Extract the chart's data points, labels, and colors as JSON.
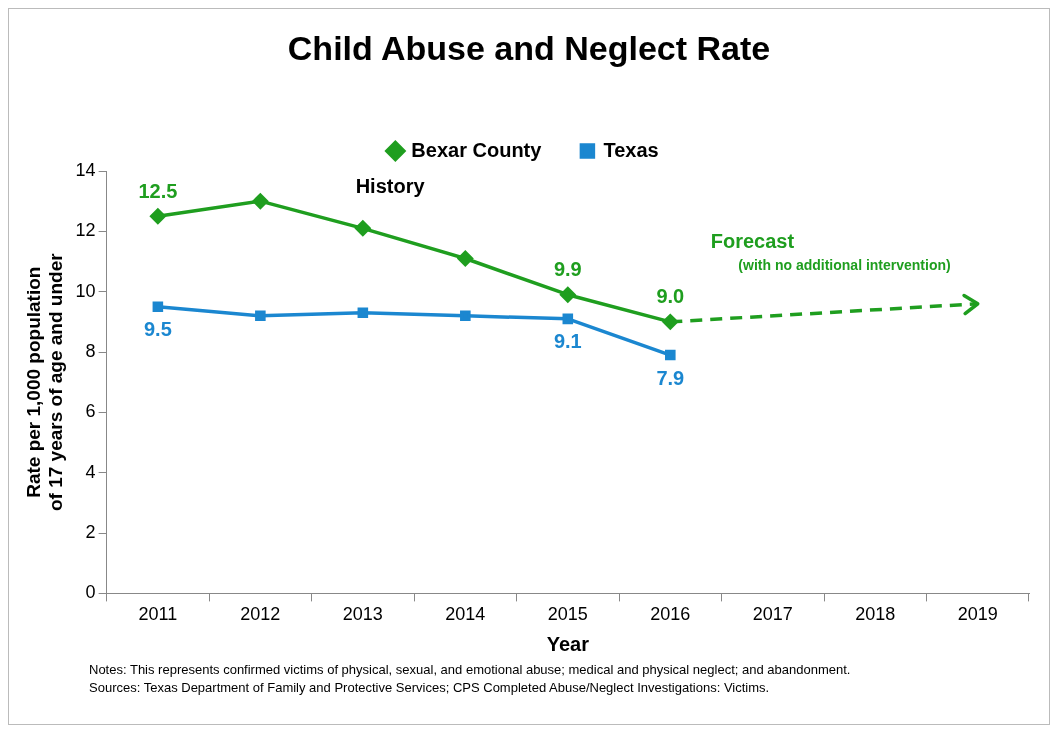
{
  "chart_data": {
    "type": "line",
    "title": "Child Abuse and Neglect Rate",
    "xlabel": "Year",
    "ylabel": "Rate per 1,000 population of 17 years of age and under",
    "categories": [
      "2011",
      "2012",
      "2013",
      "2014",
      "2015",
      "2016",
      "2017",
      "2018",
      "2019"
    ],
    "series": [
      {
        "name": "Bexar County",
        "color": "#1f9e1f",
        "marker": "diamond",
        "values": [
          12.5,
          13.0,
          12.1,
          11.1,
          9.9,
          9.0,
          null,
          null,
          null
        ],
        "value_labels": [
          "12.5",
          null,
          null,
          null,
          "9.9",
          "9.0",
          null,
          null,
          null
        ]
      },
      {
        "name": "Texas",
        "color": "#1b87d0",
        "marker": "square",
        "values": [
          9.5,
          9.2,
          9.3,
          9.2,
          9.1,
          7.9,
          null,
          null,
          null
        ],
        "value_labels": [
          "9.5",
          null,
          null,
          null,
          "9.1",
          "7.9",
          null,
          null,
          null
        ]
      },
      {
        "color": "#1f9e1f",
        "line_style": "dashed",
        "values": [
          null,
          null,
          null,
          null,
          null,
          9.0,
          null,
          null,
          9.6
        ]
      }
    ],
    "ylim": [
      0,
      14
    ],
    "yticks": [
      0,
      2,
      4,
      6,
      8,
      10,
      12,
      14
    ],
    "grid": false,
    "legend": "top",
    "annotations": [
      "History",
      "Forecast",
      "(with no additional intervention)",
      "Notes: This represents confirmed victims of physical, sexual, and emotional abuse; medical and physical neglect; and abandonment.",
      "Sources: Texas Department of Family and Protective Services; CPS Completed Abuse/Neglect Investigations: Victims."
    ]
  }
}
